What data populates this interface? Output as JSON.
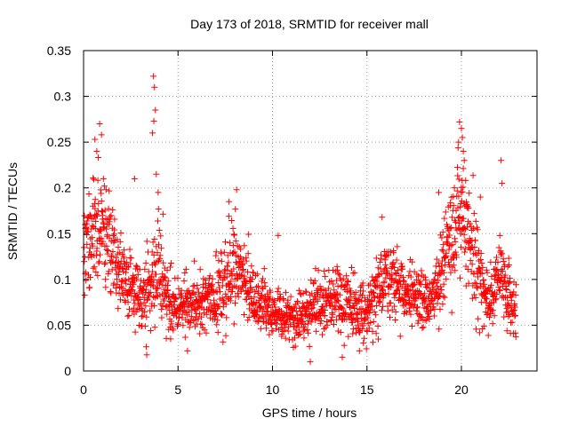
{
  "chart_data": {
    "type": "scatter",
    "title": "Day 173 of 2018, SRMTID for receiver mall",
    "xlabel": "GPS time / hours",
    "ylabel": "SRMTID / TECUs",
    "xlim": [
      0,
      24
    ],
    "ylim": [
      0,
      0.35
    ],
    "xticks": [
      0,
      5,
      10,
      15,
      20
    ],
    "xtick_labels": [
      "0",
      "5",
      "10",
      "15",
      "20"
    ],
    "yticks": [
      0,
      0.05,
      0.1,
      0.15,
      0.2,
      0.25,
      0.3,
      0.35
    ],
    "ytick_labels": [
      "0",
      "0.05",
      "0.1",
      "0.15",
      "0.2",
      "0.25",
      "0.3",
      "0.35"
    ],
    "grid": true,
    "marker": "plus",
    "color": "#ff0000",
    "profile": [
      [
        0.0,
        0.13,
        0.035
      ],
      [
        0.5,
        0.16,
        0.045
      ],
      [
        1.0,
        0.16,
        0.045
      ],
      [
        1.5,
        0.13,
        0.04
      ],
      [
        2.0,
        0.11,
        0.03
      ],
      [
        2.5,
        0.09,
        0.025
      ],
      [
        3.0,
        0.08,
        0.025
      ],
      [
        3.5,
        0.09,
        0.03
      ],
      [
        4.0,
        0.11,
        0.04
      ],
      [
        4.5,
        0.08,
        0.025
      ],
      [
        5.0,
        0.07,
        0.02
      ],
      [
        6.0,
        0.075,
        0.02
      ],
      [
        7.0,
        0.08,
        0.025
      ],
      [
        7.5,
        0.09,
        0.03
      ],
      [
        8.0,
        0.12,
        0.035
      ],
      [
        8.5,
        0.1,
        0.03
      ],
      [
        9.0,
        0.075,
        0.02
      ],
      [
        10.0,
        0.065,
        0.02
      ],
      [
        11.0,
        0.06,
        0.02
      ],
      [
        12.0,
        0.065,
        0.02
      ],
      [
        13.0,
        0.08,
        0.025
      ],
      [
        14.0,
        0.075,
        0.025
      ],
      [
        15.0,
        0.06,
        0.02
      ],
      [
        15.5,
        0.085,
        0.025
      ],
      [
        16.0,
        0.1,
        0.025
      ],
      [
        17.0,
        0.085,
        0.02
      ],
      [
        18.0,
        0.08,
        0.02
      ],
      [
        18.5,
        0.075,
        0.02
      ],
      [
        19.0,
        0.12,
        0.03
      ],
      [
        19.5,
        0.14,
        0.035
      ],
      [
        20.0,
        0.18,
        0.045
      ],
      [
        20.5,
        0.14,
        0.04
      ],
      [
        21.0,
        0.1,
        0.03
      ],
      [
        21.5,
        0.08,
        0.025
      ],
      [
        22.0,
        0.1,
        0.03
      ],
      [
        22.5,
        0.08,
        0.025
      ],
      [
        22.9,
        0.07,
        0.02
      ]
    ],
    "peaks": [
      [
        0.85,
        0.27
      ],
      [
        0.95,
        0.258
      ],
      [
        0.6,
        0.253
      ],
      [
        0.7,
        0.24
      ],
      [
        1.05,
        0.21
      ],
      [
        3.7,
        0.322
      ],
      [
        3.75,
        0.31
      ],
      [
        3.8,
        0.285
      ],
      [
        3.72,
        0.273
      ],
      [
        3.65,
        0.26
      ],
      [
        3.85,
        0.215
      ],
      [
        3.95,
        0.195
      ],
      [
        2.7,
        0.21
      ],
      [
        8.1,
        0.198
      ],
      [
        7.7,
        0.185
      ],
      [
        10.3,
        0.148
      ],
      [
        15.8,
        0.168
      ],
      [
        19.9,
        0.272
      ],
      [
        20.0,
        0.265
      ],
      [
        20.05,
        0.255
      ],
      [
        20.1,
        0.24
      ],
      [
        20.15,
        0.23
      ],
      [
        19.85,
        0.25
      ],
      [
        18.8,
        0.195
      ],
      [
        21.0,
        0.19
      ],
      [
        22.1,
        0.23
      ],
      [
        22.15,
        0.205
      ],
      [
        12.0,
        0.01
      ],
      [
        14.6,
        0.022
      ],
      [
        5.5,
        0.022
      ]
    ]
  }
}
